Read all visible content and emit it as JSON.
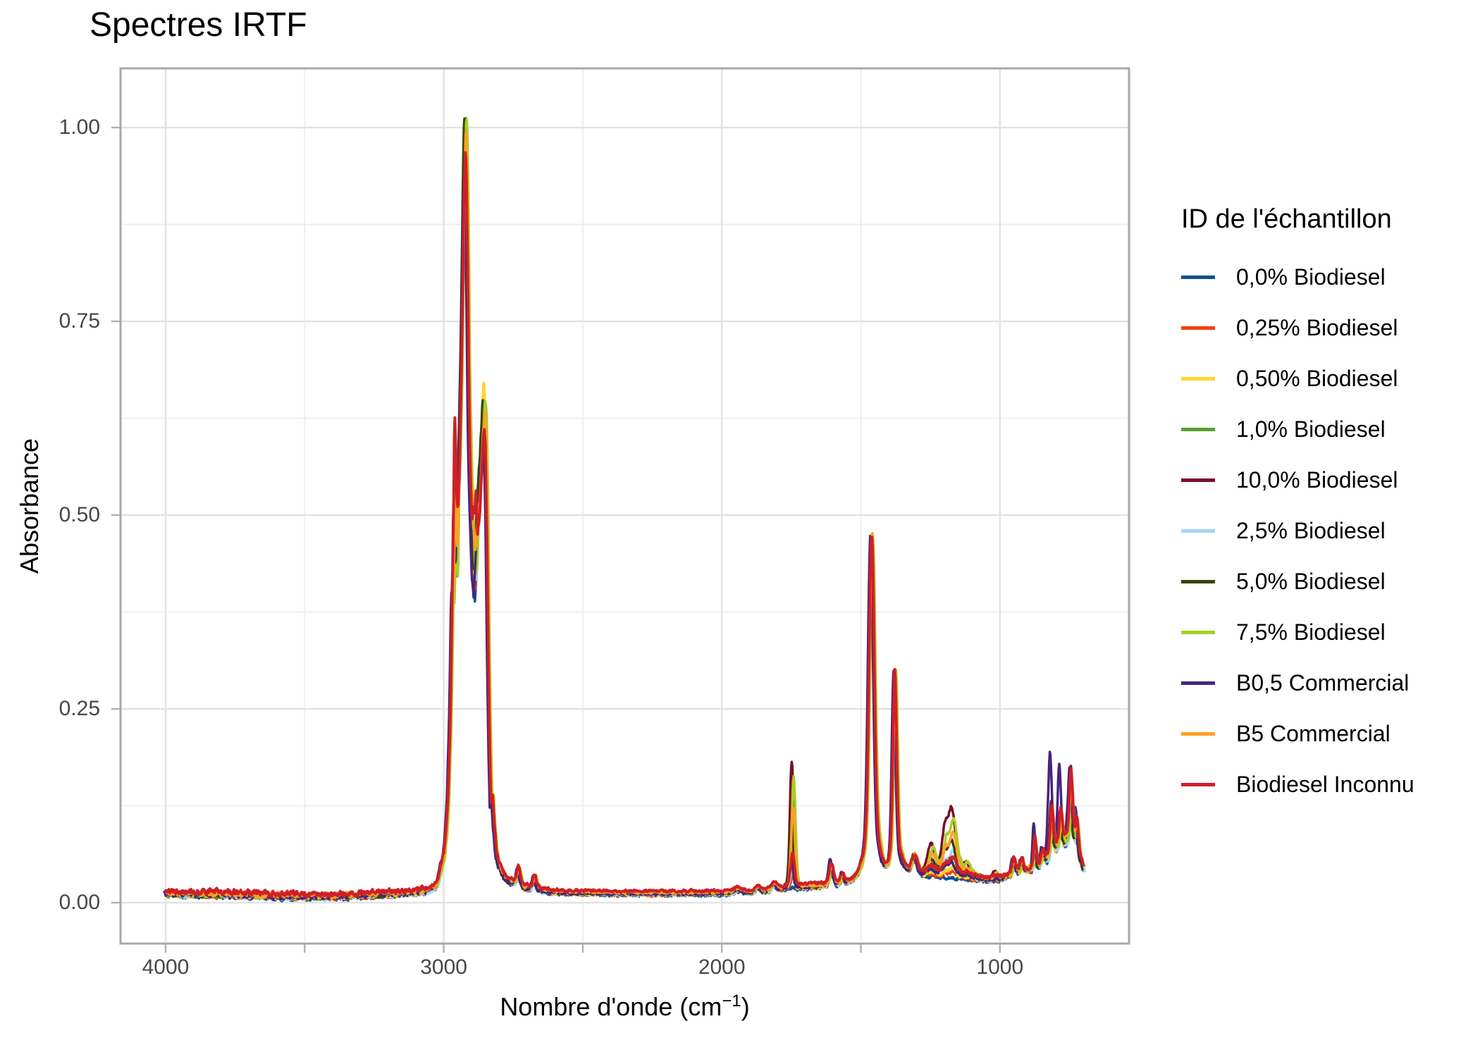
{
  "title": "Spectres IRTF",
  "colors": {
    "background": "#ffffff",
    "panel_border": "#a8a8a8",
    "grid_major": "#e2e2e2",
    "grid_minor": "#ededed",
    "tick_mark": "#b0b0b0",
    "tick_label": "#474747",
    "text": "#000000"
  },
  "axes": {
    "x": {
      "title_prefix": "Nombre d'onde (cm",
      "title_sup": "−1",
      "title_suffix": ")",
      "ticks": [
        {
          "label": "4000",
          "value": 4000
        },
        {
          "label": "3000",
          "value": 3000
        },
        {
          "label": "2000",
          "value": 2000
        },
        {
          "label": "1000",
          "value": 1000
        }
      ],
      "minor_ticks": [
        3500,
        2500,
        1500
      ],
      "reversed": true
    },
    "y": {
      "title": "Absorbance",
      "ticks": [
        {
          "label": "1.00",
          "value": 1.0
        },
        {
          "label": "0.75",
          "value": 0.75
        },
        {
          "label": "0.50",
          "value": 0.5
        },
        {
          "label": "0.25",
          "value": 0.25
        },
        {
          "label": "0.00",
          "value": 0.0
        }
      ],
      "minor_ticks": [
        0.875,
        0.625,
        0.375,
        0.125
      ]
    }
  },
  "legend": {
    "title": "ID de l'échantillon",
    "items": [
      {
        "label": "0,0% Biodiesel",
        "color": "#11518c"
      },
      {
        "label": "0,25% Biodiesel",
        "color": "#f4420e"
      },
      {
        "label": "0,50% Biodiesel",
        "color": "#ffd42a"
      },
      {
        "label": "1,0% Biodiesel",
        "color": "#55a12c"
      },
      {
        "label": "10,0% Biodiesel",
        "color": "#7b0d26"
      },
      {
        "label": "2,5% Biodiesel",
        "color": "#a3d5f7"
      },
      {
        "label": "5,0% Biodiesel",
        "color": "#374409"
      },
      {
        "label": "7,5% Biodiesel",
        "color": "#a8cf22"
      },
      {
        "label": "B0,5 Commercial",
        "color": "#45267e"
      },
      {
        "label": "B5 Commercial",
        "color": "#ffa126"
      },
      {
        "label": "Biodiesel Inconnu",
        "color": "#d02026"
      }
    ]
  },
  "chart_data": {
    "type": "line",
    "title": "Spectres IRTF",
    "xlabel": "Nombre d'onde (cm−1)",
    "ylabel": "Absorbance",
    "x_range_cm1": [
      4000,
      700
    ],
    "x_axis_reversed": true,
    "ylim": [
      -0.053,
      1.076
    ],
    "grid": "on",
    "legend_position": "right",
    "series": [
      {
        "name": "0,0% Biodiesel",
        "color": "#11518c",
        "ester": 0.02,
        "aromatic": 0.9,
        "peak2922": 1.0,
        "peak2955": 0.515,
        "valley2890": 0.395,
        "peak2853": 0.615,
        "offset": -0.002,
        "dx": 0.0,
        "lw": 3.5,
        "extra_peaks": []
      },
      {
        "name": "0,25% Biodiesel",
        "color": "#f4420e",
        "ester": 0.1,
        "aromatic": 0.92,
        "peak2922": 1.008,
        "peak2955": 0.525,
        "valley2890": 0.41,
        "peak2853": 0.622,
        "offset": -0.0012,
        "dx": 0.6,
        "lw": 3.5,
        "extra_peaks": []
      },
      {
        "name": "0,50% Biodiesel",
        "color": "#ffd42a",
        "ester": 0.15,
        "aromatic": 0.96,
        "peak2922": 1.016,
        "peak2955": 0.53,
        "valley2890": 0.42,
        "peak2853": 0.667,
        "offset": -0.0008,
        "dx": -0.6,
        "lw": 3.5,
        "extra_peaks": []
      },
      {
        "name": "1,0% Biodiesel",
        "color": "#55a12c",
        "ester": 0.28,
        "aromatic": 0.96,
        "peak2922": 1.022,
        "peak2955": 0.52,
        "valley2890": 0.42,
        "peak2853": 0.648,
        "offset": 0.0,
        "dx": 1.0,
        "lw": 3.5,
        "extra_peaks": []
      },
      {
        "name": "10,0% Biodiesel",
        "color": "#7b0d26",
        "ester": 1.0,
        "aromatic": 1.3,
        "peak2922": 0.99,
        "peak2955": 0.54,
        "valley2890": 0.43,
        "peak2853": 0.64,
        "offset": 0.001,
        "dx": -1.0,
        "lw": 3.5,
        "extra_peaks": [
          {
            "c": 741,
            "s": 6,
            "h": 0.03
          },
          {
            "c": 810,
            "s": 6,
            "h": 0.015
          },
          {
            "c": 1186,
            "s": 10,
            "h": 0.01
          }
        ]
      },
      {
        "name": "2,5% Biodiesel",
        "color": "#a3d5f7",
        "ester": 0.41,
        "aromatic": 0.9,
        "peak2922": 0.998,
        "peak2955": 0.52,
        "valley2890": 0.42,
        "peak2853": 0.628,
        "offset": -0.0008,
        "dx": 1.4,
        "lw": 3.5,
        "extra_peaks": []
      },
      {
        "name": "5,0% Biodiesel",
        "color": "#374409",
        "ester": 0.55,
        "aromatic": 1.0,
        "peak2922": 1.014,
        "peak2955": 0.53,
        "valley2890": 0.43,
        "peak2853": 0.66,
        "offset": 0.0,
        "dx": -1.4,
        "lw": 3.5,
        "extra_peaks": []
      },
      {
        "name": "7,5% Biodiesel",
        "color": "#a8cf22",
        "ester": 0.88,
        "aromatic": 1.05,
        "peak2922": 1.019,
        "peak2955": 0.51,
        "valley2890": 0.42,
        "peak2853": 0.652,
        "offset": 0.0008,
        "dx": 1.8,
        "lw": 3.5,
        "extra_peaks": []
      },
      {
        "name": "B0,5 Commercial",
        "color": "#45267e",
        "ester": 0.23,
        "aromatic": 1.6,
        "peak2922": 0.932,
        "peak2955": 0.53,
        "valley2890": 0.4,
        "peak2853": 0.6,
        "offset": 0.0,
        "dx": -1.8,
        "lw": 3.5,
        "extra_peaks": [
          {
            "c": 818,
            "s": 6,
            "h": 0.07
          },
          {
            "c": 783,
            "s": 5.5,
            "h": 0.048
          },
          {
            "c": 873,
            "s": 5,
            "h": 0.012
          }
        ]
      },
      {
        "name": "B5 Commercial",
        "color": "#ffa126",
        "ester": 0.64,
        "aromatic": 1.25,
        "peak2922": 1.002,
        "peak2955": 0.55,
        "valley2890": 0.45,
        "peak2853": 0.633,
        "offset": 0.0018,
        "dx": 0.8,
        "lw": 3.5,
        "extra_peaks": [
          {
            "c": 744,
            "s": 6,
            "h": 0.012
          }
        ]
      },
      {
        "name": "Biodiesel Inconnu",
        "color": "#d02026",
        "ester": 0.26,
        "aromatic": 1.3,
        "peak2922": 0.975,
        "peak2955": 0.635,
        "valley2890": 0.5,
        "peak2853": 0.605,
        "offset": 0.0035,
        "dx": 0.0,
        "lw": 3.9,
        "extra_peaks": [
          {
            "c": 744,
            "s": 6,
            "h": 0.015
          }
        ]
      }
    ],
    "common_peaks": [
      {
        "c": 2731,
        "s": 6,
        "h": 0.022
      },
      {
        "c": 2673,
        "s": 6,
        "h": 0.016
      },
      {
        "c": 1942,
        "s": 12,
        "h": 0.004
      },
      {
        "c": 1871,
        "s": 8,
        "h": 0.005
      },
      {
        "c": 1812,
        "s": 8,
        "h": 0.007
      },
      {
        "c": 1606,
        "s": 7,
        "h": 0.02,
        "k": "ar"
      },
      {
        "c": 1567,
        "s": 6,
        "h": 0.008,
        "k": "ar"
      },
      {
        "c": 1461,
        "s": 9,
        "h": 0.385
      },
      {
        "c": 1461,
        "s": 26,
        "h": 0.055
      },
      {
        "c": 1378,
        "s": 6.5,
        "h": 0.225
      },
      {
        "c": 1378,
        "s": 16,
        "h": 0.03
      },
      {
        "c": 1306,
        "s": 9,
        "h": 0.02
      },
      {
        "c": 949,
        "s": 6,
        "h": 0.013,
        "k": "ar"
      },
      {
        "c": 921,
        "s": 6,
        "h": 0.01,
        "k": "ar"
      },
      {
        "c": 874,
        "s": 4.5,
        "h": 0.028,
        "k": "ar"
      },
      {
        "c": 846,
        "s": 5,
        "h": 0.012,
        "k": "ar"
      },
      {
        "c": 813,
        "s": 5.5,
        "h": 0.04,
        "k": "ar"
      },
      {
        "c": 781,
        "s": 5,
        "h": 0.028,
        "k": "ar"
      },
      {
        "c": 765,
        "s": 45,
        "h": 0.026,
        "k": "ar"
      },
      {
        "c": 744,
        "s": 6,
        "h": 0.052,
        "k": "ar"
      },
      {
        "c": 723,
        "s": 4.5,
        "h": 0.028,
        "k": "ar"
      }
    ],
    "ester_peaks": [
      {
        "c": 1746,
        "s": 6.5,
        "h": 0.15
      },
      {
        "c": 1746,
        "s": 16,
        "h": 0.012
      },
      {
        "c": 1437,
        "s": 8,
        "h": 0.018
      },
      {
        "c": 1361,
        "s": 8,
        "h": 0.012
      },
      {
        "c": 1246,
        "s": 11,
        "h": 0.028
      },
      {
        "c": 1197,
        "s": 8,
        "h": 0.032
      },
      {
        "c": 1171,
        "s": 12,
        "h": 0.062
      },
      {
        "c": 1180,
        "s": 55,
        "h": 0.024
      },
      {
        "c": 1117,
        "s": 8,
        "h": 0.008
      },
      {
        "c": 1016,
        "s": 7,
        "h": 0.01
      }
    ],
    "ch_region_anchors": [
      [
        3012,
        0.04,
        "c"
      ],
      [
        3000,
        0.06,
        "c"
      ],
      [
        2992,
        0.085,
        "c"
      ],
      [
        2984,
        0.135,
        "c"
      ],
      [
        2978,
        0.21,
        "c"
      ],
      [
        2973,
        0.3,
        "c"
      ],
      [
        2969,
        0.4,
        "c"
      ],
      [
        2965,
        0.75,
        "S"
      ],
      [
        2961,
        1.0,
        "S"
      ],
      [
        2957,
        0.92,
        "S"
      ],
      [
        2953,
        0.8,
        "S"
      ],
      [
        2949,
        0.52,
        "M"
      ],
      [
        2944,
        0.56,
        "M"
      ],
      [
        2938,
        0.66,
        "M"
      ],
      [
        2932,
        0.8,
        "M"
      ],
      [
        2927,
        0.93,
        "M"
      ],
      [
        2923,
        1.0,
        "M"
      ],
      [
        2919,
        0.97,
        "M"
      ],
      [
        2914,
        0.84,
        "M"
      ],
      [
        2909,
        0.66,
        "M"
      ],
      [
        2904,
        0.565,
        "M"
      ],
      [
        2898,
        0.5,
        "M"
      ],
      [
        2893,
        1.04,
        "V"
      ],
      [
        2888,
        1.0,
        "V"
      ],
      [
        2883,
        1.06,
        "V"
      ],
      [
        2878,
        0.78,
        "D"
      ],
      [
        2872,
        0.82,
        "D"
      ],
      [
        2866,
        0.88,
        "D"
      ],
      [
        2860,
        0.95,
        "D"
      ],
      [
        2855,
        1.0,
        "D"
      ],
      [
        2850,
        0.96,
        "D"
      ],
      [
        2845,
        0.8,
        "D"
      ],
      [
        2840,
        0.55,
        "D"
      ],
      [
        2835,
        0.34,
        "D"
      ],
      [
        2830,
        0.21,
        "D"
      ],
      [
        2824,
        0.135,
        "c"
      ],
      [
        2818,
        0.095,
        "c"
      ],
      [
        2812,
        0.07,
        "c"
      ],
      [
        2805,
        0.054,
        "c"
      ],
      [
        2797,
        0.044,
        "c"
      ],
      [
        2788,
        0.037,
        "c"
      ],
      [
        2778,
        0.031,
        "c"
      ]
    ],
    "baseline_anchors": [
      [
        4000,
        0.0115
      ],
      [
        3900,
        0.011
      ],
      [
        3800,
        0.0105
      ],
      [
        3700,
        0.0095
      ],
      [
        3600,
        0.0085
      ],
      [
        3520,
        0.0078
      ],
      [
        3450,
        0.0075
      ],
      [
        3400,
        0.0078
      ],
      [
        3340,
        0.0085
      ],
      [
        3280,
        0.0098
      ],
      [
        3220,
        0.0108
      ],
      [
        3160,
        0.0118
      ],
      [
        3100,
        0.0132
      ],
      [
        3060,
        0.015
      ],
      [
        3040,
        0.018
      ],
      [
        3025,
        0.023
      ],
      [
        3012,
        0.04
      ],
      [
        2778,
        0.031
      ],
      [
        2760,
        0.027
      ],
      [
        2740,
        0.0235
      ],
      [
        2710,
        0.02
      ],
      [
        2680,
        0.0175
      ],
      [
        2650,
        0.0155
      ],
      [
        2600,
        0.0135
      ],
      [
        2520,
        0.0122
      ],
      [
        2400,
        0.0118
      ],
      [
        2200,
        0.0115
      ],
      [
        2000,
        0.0118
      ],
      [
        1900,
        0.0128
      ],
      [
        1840,
        0.015
      ],
      [
        1800,
        0.017
      ],
      [
        1760,
        0.0185
      ],
      [
        1720,
        0.0195
      ],
      [
        1680,
        0.0205
      ],
      [
        1630,
        0.022
      ],
      [
        1580,
        0.0245
      ],
      [
        1540,
        0.027
      ],
      [
        1510,
        0.03
      ],
      [
        1480,
        0.033
      ],
      [
        1440,
        0.034
      ],
      [
        1410,
        0.036
      ],
      [
        1390,
        0.038
      ],
      [
        1365,
        0.043
      ],
      [
        1350,
        0.047
      ],
      [
        1335,
        0.044
      ],
      [
        1315,
        0.0405
      ],
      [
        1295,
        0.038
      ],
      [
        1275,
        0.0365
      ],
      [
        1255,
        0.0355
      ],
      [
        1235,
        0.035
      ],
      [
        1210,
        0.034
      ],
      [
        1185,
        0.033
      ],
      [
        1160,
        0.0325
      ],
      [
        1135,
        0.0318
      ],
      [
        1110,
        0.031
      ],
      [
        1085,
        0.03
      ],
      [
        1060,
        0.0295
      ],
      [
        1035,
        0.029
      ],
      [
        1010,
        0.0295
      ],
      [
        985,
        0.032
      ],
      [
        965,
        0.035
      ],
      [
        945,
        0.0375
      ],
      [
        925,
        0.039
      ],
      [
        905,
        0.041
      ],
      [
        885,
        0.0425
      ],
      [
        865,
        0.044
      ],
      [
        845,
        0.0455
      ],
      [
        825,
        0.047
      ],
      [
        805,
        0.0485
      ],
      [
        785,
        0.05
      ],
      [
        765,
        0.052
      ],
      [
        748,
        0.054
      ],
      [
        735,
        0.054
      ],
      [
        722,
        0.051
      ],
      [
        712,
        0.045
      ],
      [
        704,
        0.0385
      ],
      [
        700,
        0.0355
      ]
    ]
  }
}
